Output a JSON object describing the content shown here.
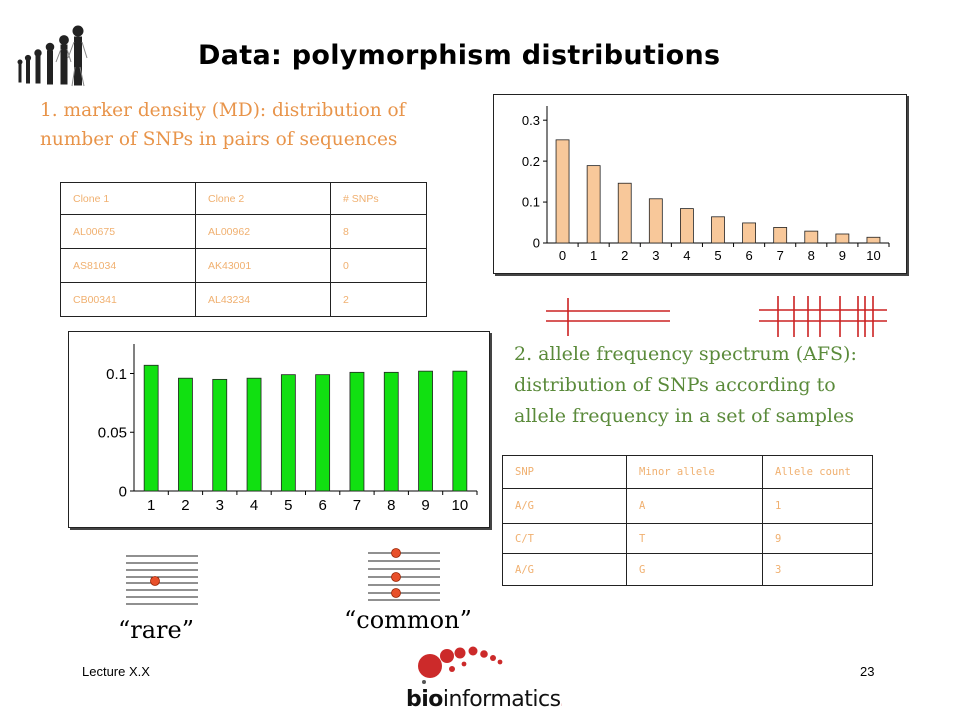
{
  "slide": {
    "title": "Data: polymorphism distributions",
    "footer_left": "Lecture X.X",
    "page_number": "23",
    "logo_text": "bioinformatics.ca"
  },
  "section1": {
    "text_line1": "1. marker density (MD): distribution of",
    "text_line2": "number of SNPs in pairs of sequences"
  },
  "section2": {
    "text_line1": "2. allele frequency spectrum (AFS):",
    "text_line2": "distribution of SNPs according to",
    "text_line3": "allele frequency in a set of samples"
  },
  "md_table": {
    "headers": [
      "Clone 1",
      "Clone 2",
      "# SNPs"
    ],
    "rows": [
      [
        "AL00675",
        "AL00962",
        "8"
      ],
      [
        "AS81034",
        "AK43001",
        "0"
      ],
      [
        "CB00341",
        "AL43234",
        "2"
      ]
    ]
  },
  "afs_table": {
    "headers": [
      "SNP",
      "Minor allele",
      "Allele count"
    ],
    "rows": [
      [
        "A/G",
        "A",
        "1"
      ],
      [
        "C/T",
        "T",
        "9"
      ],
      [
        "A/G",
        "G",
        "3"
      ]
    ]
  },
  "labels": {
    "rare": "“rare”",
    "common": "“common”"
  },
  "colors": {
    "md_bar": "#f8c89a",
    "afs_bar": "#11e011",
    "orange_text": "#e8944a",
    "green_text": "#5a8a3a",
    "red": "#cc2222"
  },
  "chart_data": [
    {
      "type": "bar",
      "categories": [
        "0",
        "1",
        "2",
        "3",
        "4",
        "5",
        "6",
        "7",
        "8",
        "9",
        "10"
      ],
      "values": [
        0.252,
        0.189,
        0.146,
        0.108,
        0.084,
        0.064,
        0.049,
        0.038,
        0.029,
        0.022,
        0.014
      ],
      "yticks": [
        "0",
        "0.1",
        "0.2",
        "0.3"
      ],
      "ylim": [
        0,
        0.32
      ],
      "title": "",
      "xlabel": "",
      "ylabel": ""
    },
    {
      "type": "bar",
      "categories": [
        "1",
        "2",
        "3",
        "4",
        "5",
        "6",
        "7",
        "8",
        "9",
        "10"
      ],
      "values": [
        0.107,
        0.096,
        0.095,
        0.096,
        0.099,
        0.099,
        0.101,
        0.101,
        0.102,
        0.102
      ],
      "yticks": [
        "0",
        "0.05",
        "0.1"
      ],
      "ylim": [
        0,
        0.12
      ],
      "title": "",
      "xlabel": "",
      "ylabel": ""
    }
  ]
}
